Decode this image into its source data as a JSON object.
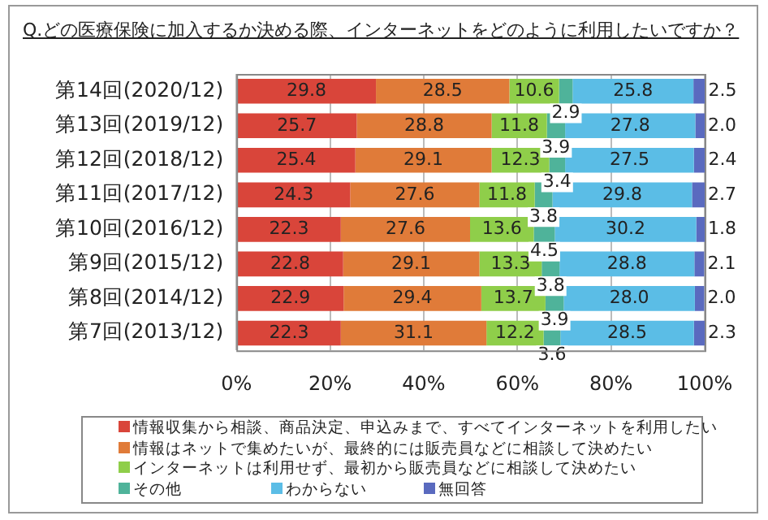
{
  "chart_data": {
    "type": "bar",
    "orientation": "horizontal",
    "stacked": true,
    "title": "Q.どの医療保険に加入するか決める際、インターネットをどのように利用したいですか？",
    "categories": [
      "第14回(2020/12)",
      "第13回(2019/12)",
      "第12回(2018/12)",
      "第11回(2017/12)",
      "第10回(2016/12)",
      "第9回(2015/12)",
      "第8回(2014/12)",
      "第7回(2013/12)"
    ],
    "series": [
      {
        "name": "情報収集から相談、商品決定、申込みまで、すべてインターネットを利用したい",
        "color": "#d9453a",
        "values": [
          29.8,
          25.7,
          25.4,
          24.3,
          22.3,
          22.8,
          22.9,
          22.3
        ],
        "value_labels": [
          "29.8",
          "25.7",
          "25.4",
          "24.3",
          "22.3",
          "22.8",
          "22.9",
          "22.3"
        ]
      },
      {
        "name": "情報はネットで集めたいが、最終的には販売員などに相談して決めたい",
        "color": "#e07b39",
        "values": [
          28.5,
          28.8,
          29.1,
          27.6,
          27.6,
          29.1,
          29.4,
          31.1
        ],
        "value_labels": [
          "28.5",
          "28.8",
          "29.1",
          "27.6",
          "27.6",
          "29.1",
          "29.4",
          "31.1"
        ]
      },
      {
        "name": "インターネットは利用せず、最初から販売員などに相談して決めたい",
        "color": "#8fce4a",
        "values": [
          10.6,
          11.8,
          12.3,
          11.8,
          13.6,
          13.3,
          13.7,
          12.2
        ],
        "value_labels": [
          "10.6",
          "11.8",
          "12.3",
          "11.8",
          "13.6",
          "13.3",
          "13.7",
          "12.2"
        ]
      },
      {
        "name": "その他",
        "color": "#4fb39a",
        "values": [
          2.9,
          3.9,
          3.4,
          3.8,
          4.5,
          3.8,
          3.9,
          3.6
        ],
        "value_labels": [
          "2.9",
          "3.9",
          "3.4",
          "3.8",
          "4.5",
          "3.8",
          "3.9",
          "3.6"
        ]
      },
      {
        "name": "わからない",
        "color": "#5bbde6",
        "values": [
          25.8,
          27.8,
          27.5,
          29.8,
          30.2,
          28.8,
          28.0,
          28.5
        ],
        "value_labels": [
          "25.8",
          "27.8",
          "27.5",
          "29.8",
          "30.2",
          "28.8",
          "28.0",
          "28.5"
        ]
      },
      {
        "name": "無回答",
        "color": "#5a6abf",
        "values": [
          2.5,
          2.0,
          2.4,
          2.7,
          1.8,
          2.1,
          2.0,
          2.3
        ],
        "value_labels": [
          "2.5",
          "2.0",
          "2.4",
          "2.7",
          "1.8",
          "2.1",
          "2.0",
          "2.3"
        ]
      }
    ],
    "xlim": [
      0,
      100
    ],
    "xticks": [
      {
        "value": 0,
        "label": "0%"
      },
      {
        "value": 20,
        "label": "20%"
      },
      {
        "value": 40,
        "label": "40%"
      },
      {
        "value": 60,
        "label": "60%"
      },
      {
        "value": 80,
        "label": "80%"
      },
      {
        "value": 100,
        "label": "100%"
      }
    ],
    "grid": "x",
    "legend": "bottom"
  }
}
